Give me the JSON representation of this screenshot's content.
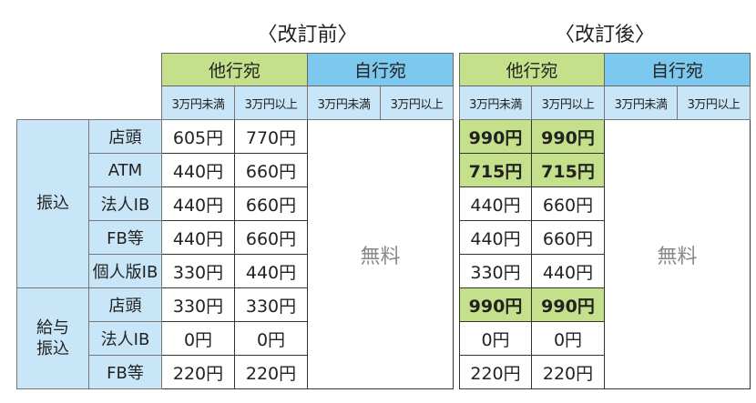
{
  "before": {
    "title": "〈改訂前〉",
    "other_bank": "他行宛",
    "own_bank": "自行宛"
  },
  "after": {
    "title": "〈改訂後〉",
    "other_bank": "他行宛",
    "own_bank": "自行宛"
  },
  "sub_headers": [
    "3万円未満",
    "3万円以上",
    "3万円未満",
    "3万円以上"
  ],
  "free_label": "無料",
  "colors": {
    "other_bank_header": "#c5e08a",
    "own_bank_header": "#7cc8ef",
    "sub_header": "#c8e6f7",
    "highlight": "#c5e08a"
  },
  "groups": [
    {
      "label": "振込",
      "rows": [
        {
          "channel": "店頭",
          "before": [
            "605円",
            "770円"
          ],
          "after": [
            "990円",
            "990円"
          ],
          "changed": true
        },
        {
          "channel": "ATM",
          "before": [
            "440円",
            "660円"
          ],
          "after": [
            "715円",
            "715円"
          ],
          "changed": true
        },
        {
          "channel": "法人IB",
          "before": [
            "440円",
            "660円"
          ],
          "after": [
            "440円",
            "660円"
          ],
          "changed": false
        },
        {
          "channel": "FB等",
          "before": [
            "440円",
            "660円"
          ],
          "after": [
            "440円",
            "660円"
          ],
          "changed": false
        },
        {
          "channel": "個人版IB",
          "before": [
            "330円",
            "440円"
          ],
          "after": [
            "330円",
            "440円"
          ],
          "changed": false
        }
      ]
    },
    {
      "label": "給与\n振込",
      "rows": [
        {
          "channel": "店頭",
          "before": [
            "330円",
            "330円"
          ],
          "after": [
            "990円",
            "990円"
          ],
          "changed": true
        },
        {
          "channel": "法人IB",
          "before": [
            "0円",
            "0円"
          ],
          "after": [
            "0円",
            "0円"
          ],
          "changed": false
        },
        {
          "channel": "FB等",
          "before": [
            "220円",
            "220円"
          ],
          "after": [
            "220円",
            "220円"
          ],
          "changed": false
        }
      ]
    }
  ]
}
